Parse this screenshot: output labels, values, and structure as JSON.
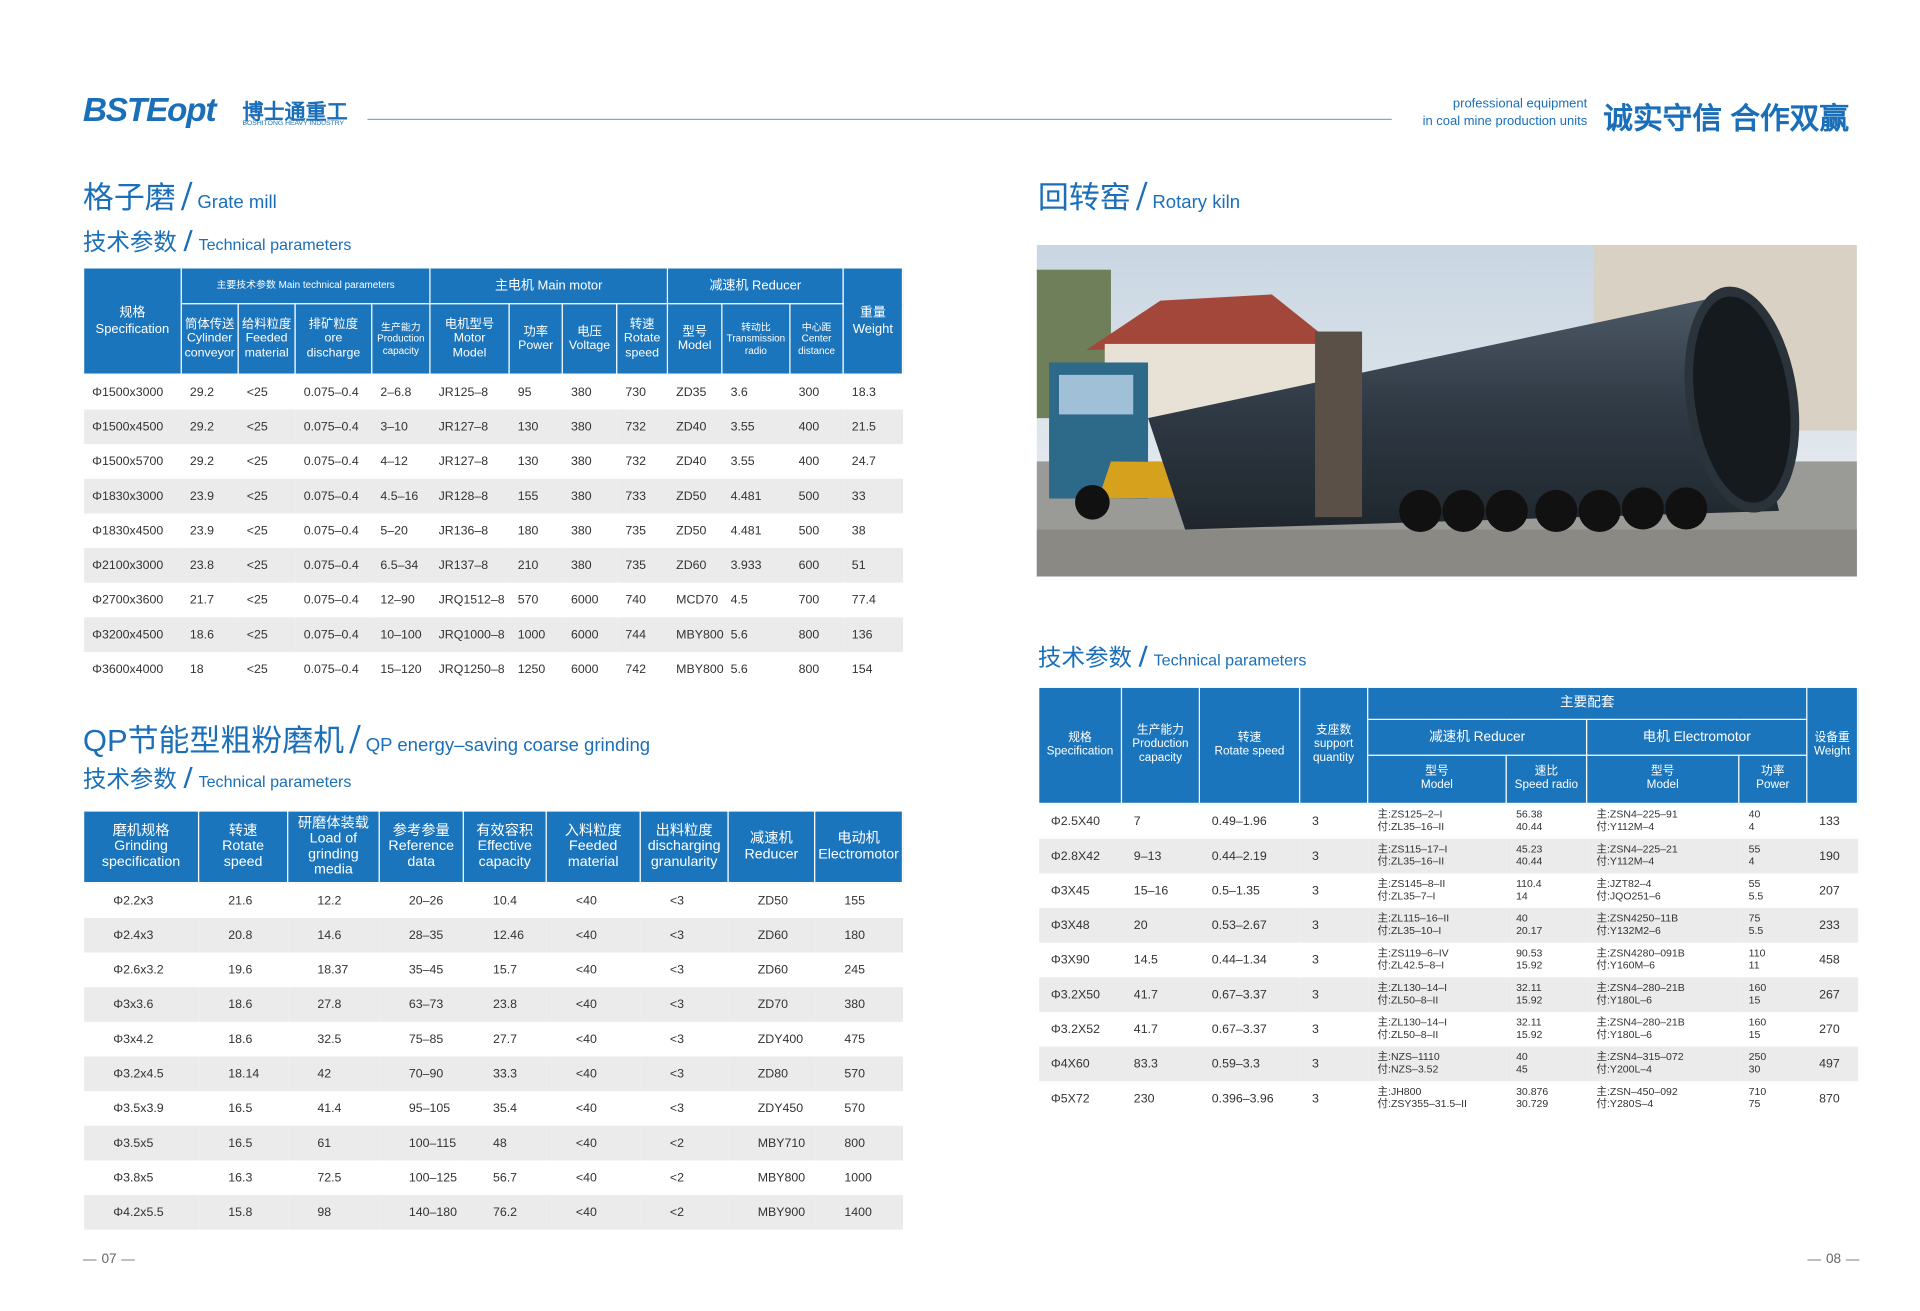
{
  "header": {
    "logo": "BSTEopt",
    "logo_cn": "博士通重工",
    "logo_en": "BOSHITONG HEAVY INDUSTRY",
    "tagline": [
      "professional equipment",
      "in coal mine production units"
    ],
    "slogan": "诚实守信 合作双赢"
  },
  "grate_mill": {
    "title_cn": "格子磨",
    "title_en": "Grate mill",
    "subtitle_cn": "技术参数",
    "subtitle_en": "Technical parameters",
    "table": {
      "spec": "规格\nSpecification",
      "groups": [
        "主要技术参数 Main technical parameters",
        "主电机 Main motor",
        "减速机 Reducer"
      ],
      "weight": "重量\nWeight",
      "columns": [
        "筒体传送\nCylinder\nconveyor",
        "给料粒度\nFeeded\nmaterial",
        "排矿粒度\nore\ndischarge",
        "生产能力\nProduction\ncapacity",
        "电机型号\nMotor\nModel",
        "功率\nPower",
        "电压\nVoltage",
        "转速\nRotate\nspeed",
        "型号\nModel",
        "转动比\nTransmission\nradio",
        "中心距\nCenter\ndistance"
      ],
      "rows": [
        [
          "Φ1500x3000",
          "29.2",
          "<25",
          "0.075–0.4",
          "2–6.8",
          "JR125–8",
          "95",
          "380",
          "730",
          "ZD35",
          "3.6",
          "300",
          "18.3"
        ],
        [
          "Φ1500x4500",
          "29.2",
          "<25",
          "0.075–0.4",
          "3–10",
          "JR127–8",
          "130",
          "380",
          "732",
          "ZD40",
          "3.55",
          "400",
          "21.5"
        ],
        [
          "Φ1500x5700",
          "29.2",
          "<25",
          "0.075–0.4",
          "4–12",
          "JR127–8",
          "130",
          "380",
          "732",
          "ZD40",
          "3.55",
          "400",
          "24.7"
        ],
        [
          "Φ1830x3000",
          "23.9",
          "<25",
          "0.075–0.4",
          "4.5–16",
          "JR128–8",
          "155",
          "380",
          "733",
          "ZD50",
          "4.481",
          "500",
          "33"
        ],
        [
          "Φ1830x4500",
          "23.9",
          "<25",
          "0.075–0.4",
          "5–20",
          "JR136–8",
          "180",
          "380",
          "735",
          "ZD50",
          "4.481",
          "500",
          "38"
        ],
        [
          "Φ2100x3000",
          "23.8",
          "<25",
          "0.075–0.4",
          "6.5–34",
          "JR137–8",
          "210",
          "380",
          "735",
          "ZD60",
          "3.933",
          "600",
          "51"
        ],
        [
          "Φ2700x3600",
          "21.7",
          "<25",
          "0.075–0.4",
          "12–90",
          "JRQ1512–8",
          "570",
          "6000",
          "740",
          "MCD70",
          "4.5",
          "700",
          "77.4"
        ],
        [
          "Φ3200x4500",
          "18.6",
          "<25",
          "0.075–0.4",
          "10–100",
          "JRQ1000–8",
          "1000",
          "6000",
          "744",
          "MBY800",
          "5.6",
          "800",
          "136"
        ],
        [
          "Φ3600x4000",
          "18",
          "<25",
          "0.075–0.4",
          "15–120",
          "JRQ1250–8",
          "1250",
          "6000",
          "742",
          "MBY800",
          "5.6",
          "800",
          "154"
        ]
      ]
    }
  },
  "qp_mill": {
    "title_cn": "QP节能型粗粉磨机",
    "title_en": "QP energy–saving coarse grinding",
    "subtitle_cn": "技术参数",
    "subtitle_en": "Technical parameters",
    "table": {
      "columns": [
        "磨机规格\nGrinding\nspecification",
        "转速\nRotate\nspeed",
        "研磨体装载\nLoad of\ngrinding\nmedia",
        "参考参量\nReference\ndata",
        "有效容积\nEffective\ncapacity",
        "入料粒度\nFeeded\nmaterial",
        "出料粒度\ndischarging\ngranularity",
        "减速机\nReducer",
        "电动机\nElectromotor"
      ],
      "rows": [
        [
          "Φ2.2x3",
          "21.6",
          "12.2",
          "20–26",
          "10.4",
          "<40",
          "<3",
          "ZD50",
          "155"
        ],
        [
          "Φ2.4x3",
          "20.8",
          "14.6",
          "28–35",
          "12.46",
          "<40",
          "<3",
          "ZD60",
          "180"
        ],
        [
          "Φ2.6x3.2",
          "19.6",
          "18.37",
          "35–45",
          "15.7",
          "<40",
          "<3",
          "ZD60",
          "245"
        ],
        [
          "Φ3x3.6",
          "18.6",
          "27.8",
          "63–73",
          "23.8",
          "<40",
          "<3",
          "ZD70",
          "380"
        ],
        [
          "Φ3x4.2",
          "18.6",
          "32.5",
          "75–85",
          "27.7",
          "<40",
          "<3",
          "ZDY400",
          "475"
        ],
        [
          "Φ3.2x4.5",
          "18.14",
          "42",
          "70–90",
          "33.3",
          "<40",
          "<3",
          "ZD80",
          "570"
        ],
        [
          "Φ3.5x3.9",
          "16.5",
          "41.4",
          "95–105",
          "35.4",
          "<40",
          "<3",
          "ZDY450",
          "570"
        ],
        [
          "Φ3.5x5",
          "16.5",
          "61",
          "100–115",
          "48",
          "<40",
          "<2",
          "MBY710",
          "800"
        ],
        [
          "Φ3.8x5",
          "16.3",
          "72.5",
          "100–125",
          "56.7",
          "<40",
          "<2",
          "MBY800",
          "1000"
        ],
        [
          "Φ4.2x5.5",
          "15.8",
          "98",
          "140–180",
          "76.2",
          "<40",
          "<2",
          "MBY900",
          "1400"
        ]
      ]
    }
  },
  "rotary_kiln": {
    "title_cn": "回转窑",
    "title_en": "Rotary kiln",
    "subtitle_cn": "技术参数",
    "subtitle_en": "Technical parameters",
    "table": {
      "spec": "规格\nSpecification",
      "capacity": "生产能力\nProduction\ncapacity",
      "speed": "转速\nRotate speed",
      "support": "支座数\nsupport\nquantity",
      "group": "主要配套",
      "subgroups": [
        "减速机 Reducer",
        "电机 Electromotor"
      ],
      "columns": [
        "型号\nModel",
        "速比\nSpeed radio",
        "型号\nModel",
        "功率\nPower"
      ],
      "weight": "设备重\nWeight",
      "rows": [
        [
          "Φ2.5X40",
          "7",
          "0.49–1.96",
          "3",
          "主:ZS125–2–I\n付:ZL35–16–II",
          "56.38\n40.44",
          "主:ZSN4–225–91\n付:Y112M–4",
          "40\n4",
          "133"
        ],
        [
          "Φ2.8X42",
          "9–13",
          "0.44–2.19",
          "3",
          "主:ZS115–17–I\n付:ZL35–16–II",
          "45.23\n40.44",
          "主:ZSN4–225–21\n付:Y112M–4",
          "55\n4",
          "190"
        ],
        [
          "Φ3X45",
          "15–16",
          "0.5–1.35",
          "3",
          "主:ZS145–8–II\n付:ZL35–7–I",
          "110.4\n14",
          "主:JZT82–4\n付:JQO251–6",
          "55\n5.5",
          "207"
        ],
        [
          "Φ3X48",
          "20",
          "0.53–2.67",
          "3",
          "主:ZL115–16–II\n付:ZL35–10–I",
          "40\n20.17",
          "主:ZSN4250–11B\n付:Y132M2–6",
          "75\n5.5",
          "233"
        ],
        [
          "Φ3X90",
          "14.5",
          "0.44–1.34",
          "3",
          "主:ZS119–6–IV\n付:ZL42.5–8–I",
          "90.53\n15.92",
          "主:ZSN4280–091B\n付:Y160M–6",
          "110\n11",
          "458"
        ],
        [
          "Φ3.2X50",
          "41.7",
          "0.67–3.37",
          "3",
          "主:ZL130–14–I\n付:ZL50–8–II",
          "32.11\n15.92",
          "主:ZSN4–280–21B\n付:Y180L–6",
          "160\n15",
          "267"
        ],
        [
          "Φ3.2X52",
          "41.7",
          "0.67–3.37",
          "3",
          "主:ZL130–14–I\n付:ZL50–8–II",
          "32.11\n15.92",
          "主:ZSN4–280–21B\n付:Y180L–6",
          "160\n15",
          "270"
        ],
        [
          "Φ4X60",
          "83.3",
          "0.59–3.3",
          "3",
          "主:NZS–1110\n付:NZS–3.52",
          "40\n45",
          "主:ZSN4–315–072\n付:Y200L–4",
          "250\n30",
          "497"
        ],
        [
          "Φ5X72",
          "230",
          "0.396–3.96",
          "3",
          "主:JH800\n付:ZSY355–31.5–II",
          "30.876\n30.729",
          "主:ZSN–450–092\n付:Y280S–4",
          "710\n75",
          "870"
        ]
      ]
    }
  },
  "page_numbers": [
    "07",
    "08"
  ]
}
